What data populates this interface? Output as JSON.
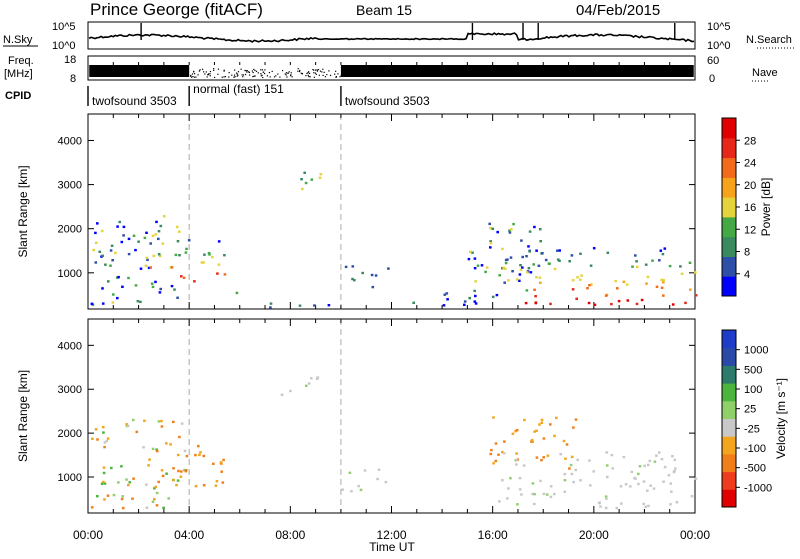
{
  "header": {
    "station": "Prince George (fitACF)",
    "beam": "Beam 15",
    "date": "04/Feb/2015"
  },
  "labels": {
    "nsky": "N.Sky",
    "nsearch": "N.Search",
    "freq_line1": "Freq.",
    "freq_line2": "[MHz]",
    "nave": "Nave",
    "cpid": "CPID",
    "noise_scale_top": "10^5",
    "noise_scale_bottom": "10^0",
    "freq_scale_top": "18",
    "freq_scale_bottom": "8",
    "nave_scale_top": "60",
    "nave_scale_bottom": "0"
  },
  "cpid_segments": [
    {
      "label": "twofsound 3503",
      "start_hour": 0,
      "end_hour": 4
    },
    {
      "label": "normal (fast) 151",
      "start_hour": 4,
      "end_hour": 10
    },
    {
      "label": "twofsound 3503",
      "start_hour": 10,
      "end_hour": 24
    }
  ],
  "colors": {
    "power_scale": [
      "#0000ff",
      "#2e4fa8",
      "#3a8a60",
      "#44a844",
      "#e5d33c",
      "#f7a21b",
      "#f26b1a",
      "#e8271b",
      "#e00000"
    ],
    "velocity_scale": [
      "#e00000",
      "#ef3b1e",
      "#f07f1a",
      "#f2a51d",
      "#c8c8c8",
      "#8fd06a",
      "#4bb53d",
      "#2c7a6a",
      "#2b4aa8",
      "#1f3cc8"
    ],
    "grid_dash": "#aaaaaa"
  },
  "chart_data": [
    {
      "type": "heatmap",
      "panel": "power",
      "xlabel": "",
      "ylabel": "Slant Range [km]",
      "xlim_hours": [
        0,
        24
      ],
      "ylim": [
        180,
        4600
      ],
      "yticks": [
        1000,
        2000,
        3000,
        4000
      ],
      "xticks_hours": [
        0,
        4,
        8,
        12,
        16,
        20,
        24
      ],
      "colorbar_label": "Power [dB]",
      "colorbar_range": [
        0,
        32
      ],
      "colorbar_ticks": [
        4,
        8,
        12,
        16,
        20,
        24,
        28
      ],
      "regions": [
        {
          "t0": 0.1,
          "t1": 3.8,
          "r0": 300,
          "r1": 2400,
          "level": "mixed"
        },
        {
          "t0": 2.3,
          "t1": 4.0,
          "r0": 900,
          "r1": 1800,
          "level": "high"
        },
        {
          "t0": 4.0,
          "t1": 5.4,
          "r0": 800,
          "r1": 1800,
          "level": "high"
        },
        {
          "t0": 5.5,
          "t1": 6.2,
          "r0": 500,
          "r1": 600,
          "level": "mid"
        },
        {
          "t0": 7.0,
          "t1": 10.0,
          "r0": 200,
          "r1": 400,
          "level": "low"
        },
        {
          "t0": 10.0,
          "t1": 12.0,
          "r0": 700,
          "r1": 1200,
          "level": "low"
        },
        {
          "t0": 12.5,
          "t1": 15.5,
          "r0": 200,
          "r1": 600,
          "level": "low"
        },
        {
          "t0": 15.0,
          "t1": 18.0,
          "r0": 400,
          "r1": 2200,
          "level": "mixed"
        },
        {
          "t0": 16.2,
          "t1": 24.0,
          "r0": 300,
          "r1": 1600,
          "level": "high"
        },
        {
          "t0": 7.5,
          "t1": 9.5,
          "r0": 2900,
          "r1": 3300,
          "level": "mid"
        }
      ]
    },
    {
      "type": "heatmap",
      "panel": "velocity",
      "xlabel": "Time UT",
      "ylabel": "Slant Range [km]",
      "xlim_hours": [
        0,
        24
      ],
      "ylim": [
        180,
        4600
      ],
      "yticks": [
        1000,
        2000,
        3000,
        4000
      ],
      "xticks_hours": [
        0,
        4,
        8,
        12,
        16,
        20,
        24
      ],
      "xtick_labels": [
        "00:00",
        "04:00",
        "08:00",
        "12:00",
        "16:00",
        "20:00",
        "00:00"
      ],
      "colorbar_label": "Velocity [m s⁻¹]",
      "colorbar_ticks": [
        "1000",
        "500",
        "100",
        "25",
        "-25",
        "-100",
        "-500",
        "-1000"
      ],
      "regions": [
        {
          "t0": 0.1,
          "t1": 3.8,
          "r0": 300,
          "r1": 2400,
          "level": "mixed"
        },
        {
          "t0": 2.3,
          "t1": 5.4,
          "r0": 800,
          "r1": 1800,
          "level": "neg"
        },
        {
          "t0": 15.8,
          "t1": 19.5,
          "r0": 1200,
          "r1": 2400,
          "level": "neg"
        },
        {
          "t0": 16.2,
          "t1": 24.0,
          "r0": 300,
          "r1": 1600,
          "level": "zero"
        },
        {
          "t0": 7.5,
          "t1": 9.5,
          "r0": 2900,
          "r1": 3300,
          "level": "zero"
        },
        {
          "t0": 10.0,
          "t1": 12.0,
          "r0": 700,
          "r1": 1200,
          "level": "zero"
        }
      ]
    }
  ]
}
